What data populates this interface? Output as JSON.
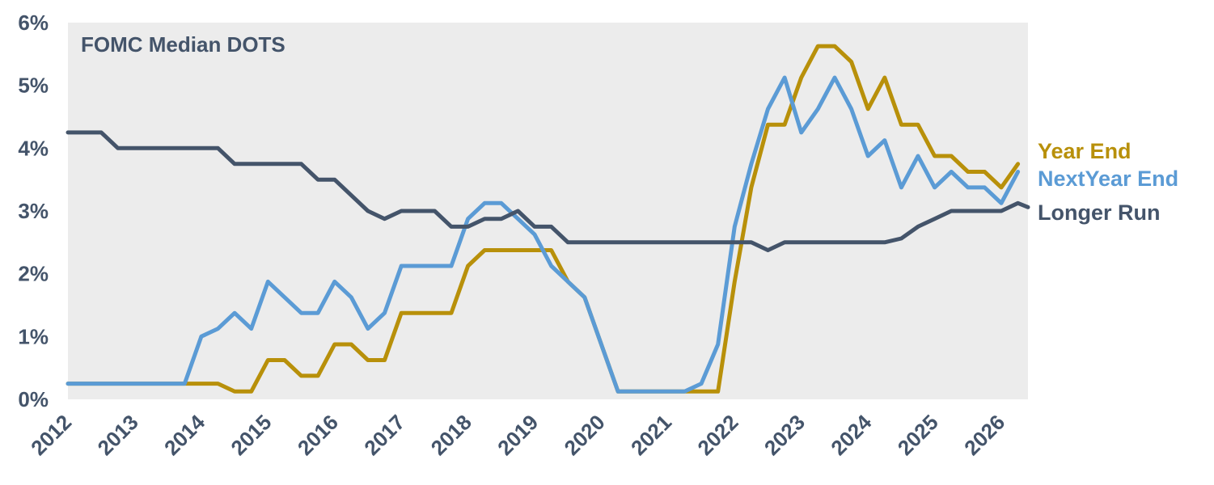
{
  "chart_data": {
    "type": "line",
    "title": "FOMC Median DOTS",
    "xlabel": "",
    "ylabel": "",
    "x_ticks": [
      "2012",
      "2013",
      "2014",
      "2015",
      "2016",
      "2017",
      "2018",
      "2019",
      "2020",
      "2021",
      "2022",
      "2023",
      "2024",
      "2025",
      "2026"
    ],
    "y_ticks": [
      "0%",
      "1%",
      "2%",
      "3%",
      "4%",
      "5%",
      "6%"
    ],
    "xlim": [
      2012,
      2026.4
    ],
    "ylim": [
      0,
      6
    ],
    "grid": false,
    "legend": "right, labels at line ends",
    "series": [
      {
        "name": "Year End",
        "color": "#b8900a",
        "points": [
          [
            2012,
            0.25
          ],
          [
            2014.25,
            0.25
          ],
          [
            2014.5,
            0.125
          ],
          [
            2014.75,
            0.125
          ],
          [
            2015,
            0.625
          ],
          [
            2015.25,
            0.625
          ],
          [
            2015.5,
            0.375
          ],
          [
            2015.75,
            0.375
          ],
          [
            2016,
            0.875
          ],
          [
            2016.25,
            0.875
          ],
          [
            2016.5,
            0.625
          ],
          [
            2016.75,
            0.625
          ],
          [
            2017,
            1.375
          ],
          [
            2017.75,
            1.375
          ],
          [
            2018,
            2.125
          ],
          [
            2018.25,
            2.375
          ],
          [
            2019.25,
            2.375
          ],
          [
            2019.5,
            1.875
          ],
          [
            2019.75,
            1.625
          ],
          [
            2020.25,
            0.125
          ],
          [
            2021.75,
            0.125
          ],
          [
            2022,
            1.875
          ],
          [
            2022.25,
            3.375
          ],
          [
            2022.5,
            4.375
          ],
          [
            2022.75,
            4.375
          ],
          [
            2023,
            5.125
          ],
          [
            2023.25,
            5.625
          ],
          [
            2023.5,
            5.625
          ],
          [
            2023.75,
            5.375
          ],
          [
            2024,
            4.625
          ],
          [
            2024.25,
            5.125
          ],
          [
            2024.5,
            4.375
          ],
          [
            2024.75,
            4.375
          ],
          [
            2025,
            3.875
          ],
          [
            2025.25,
            3.875
          ],
          [
            2025.5,
            3.625
          ],
          [
            2025.75,
            3.625
          ],
          [
            2026,
            3.375
          ],
          [
            2026.25,
            3.75
          ]
        ]
      },
      {
        "name": "NextYear End",
        "color": "#5b9bd5",
        "points": [
          [
            2012,
            0.25
          ],
          [
            2013.75,
            0.25
          ],
          [
            2014,
            1.0
          ],
          [
            2014.25,
            1.125
          ],
          [
            2014.5,
            1.375
          ],
          [
            2014.75,
            1.125
          ],
          [
            2015,
            1.875
          ],
          [
            2015.25,
            1.625
          ],
          [
            2015.5,
            1.375
          ],
          [
            2015.75,
            1.375
          ],
          [
            2016,
            1.875
          ],
          [
            2016.25,
            1.625
          ],
          [
            2016.5,
            1.125
          ],
          [
            2016.75,
            1.375
          ],
          [
            2017,
            2.125
          ],
          [
            2017.75,
            2.125
          ],
          [
            2018,
            2.875
          ],
          [
            2018.25,
            3.125
          ],
          [
            2018.5,
            3.125
          ],
          [
            2019,
            2.625
          ],
          [
            2019.25,
            2.125
          ],
          [
            2019.5,
            1.875
          ],
          [
            2019.75,
            1.625
          ],
          [
            2020.25,
            0.125
          ],
          [
            2021.25,
            0.125
          ],
          [
            2021.5,
            0.25
          ],
          [
            2021.75,
            0.875
          ],
          [
            2022,
            2.75
          ],
          [
            2022.25,
            3.75
          ],
          [
            2022.5,
            4.625
          ],
          [
            2022.75,
            5.125
          ],
          [
            2023,
            4.25
          ],
          [
            2023.25,
            4.625
          ],
          [
            2023.5,
            5.125
          ],
          [
            2023.75,
            4.625
          ],
          [
            2024,
            3.875
          ],
          [
            2024.25,
            4.125
          ],
          [
            2024.5,
            3.375
          ],
          [
            2024.75,
            3.875
          ],
          [
            2025,
            3.375
          ],
          [
            2025.25,
            3.625
          ],
          [
            2025.5,
            3.375
          ],
          [
            2025.75,
            3.375
          ],
          [
            2026,
            3.125
          ],
          [
            2026.25,
            3.625
          ]
        ]
      },
      {
        "name": "Longer Run",
        "color": "#44546a",
        "points": [
          [
            2012,
            4.25
          ],
          [
            2012.5,
            4.25
          ],
          [
            2012.75,
            4.0
          ],
          [
            2014.25,
            4.0
          ],
          [
            2014.5,
            3.75
          ],
          [
            2015.5,
            3.75
          ],
          [
            2015.75,
            3.5
          ],
          [
            2016,
            3.5
          ],
          [
            2016.5,
            3.0
          ],
          [
            2016.75,
            2.875
          ],
          [
            2017,
            3.0
          ],
          [
            2017.5,
            3.0
          ],
          [
            2017.75,
            2.75
          ],
          [
            2018,
            2.75
          ],
          [
            2018.25,
            2.875
          ],
          [
            2018.5,
            2.875
          ],
          [
            2018.75,
            3.0
          ],
          [
            2019,
            2.75
          ],
          [
            2019.25,
            2.75
          ],
          [
            2019.5,
            2.5
          ],
          [
            2022.25,
            2.5
          ],
          [
            2022.5,
            2.375
          ],
          [
            2022.75,
            2.5
          ],
          [
            2024.25,
            2.5
          ],
          [
            2024.5,
            2.5625
          ],
          [
            2024.75,
            2.75
          ],
          [
            2025,
            2.875
          ],
          [
            2025.25,
            3.0
          ],
          [
            2026,
            3.0
          ],
          [
            2026.25,
            3.125
          ],
          [
            2026.4,
            3.06
          ]
        ]
      }
    ]
  }
}
